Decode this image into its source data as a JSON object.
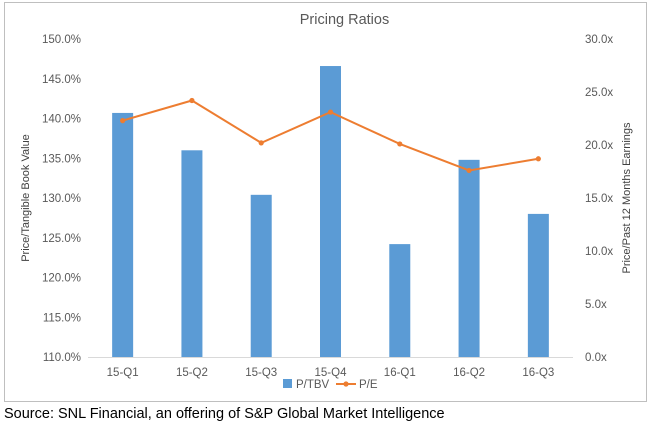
{
  "chart_data": {
    "type": "bar+line",
    "title": "Pricing Ratios",
    "categories": [
      "15-Q1",
      "15-Q2",
      "15-Q3",
      "15-Q4",
      "16-Q1",
      "16-Q2",
      "16-Q3"
    ],
    "series": [
      {
        "name": "P/TBV",
        "type": "bar",
        "axis": "left",
        "values": [
          140.7,
          136.0,
          130.4,
          146.6,
          124.2,
          134.8,
          128.0
        ],
        "color": "#5b9bd5"
      },
      {
        "name": "P/E",
        "type": "line",
        "axis": "right",
        "values": [
          22.3,
          24.2,
          20.2,
          23.1,
          20.1,
          17.6,
          18.7
        ],
        "color": "#ed7d31"
      }
    ],
    "ylabel_left": "Price/Tangible Book Value",
    "ylabel_right": "Price/Past 12 Months Earnings",
    "ylim_left": [
      110,
      150
    ],
    "ylim_right": [
      0,
      30
    ],
    "yticks_left": [
      "110.0%",
      "115.0%",
      "120.0%",
      "125.0%",
      "130.0%",
      "135.0%",
      "140.0%",
      "145.0%",
      "150.0%"
    ],
    "yticks_right": [
      "0.0x",
      "5.0x",
      "10.0x",
      "15.0x",
      "20.0x",
      "25.0x",
      "30.0x"
    ],
    "grid": false,
    "legend_position": "bottom"
  },
  "source_note": "Source: SNL Financial, an offering of S&P Global Market Intelligence"
}
